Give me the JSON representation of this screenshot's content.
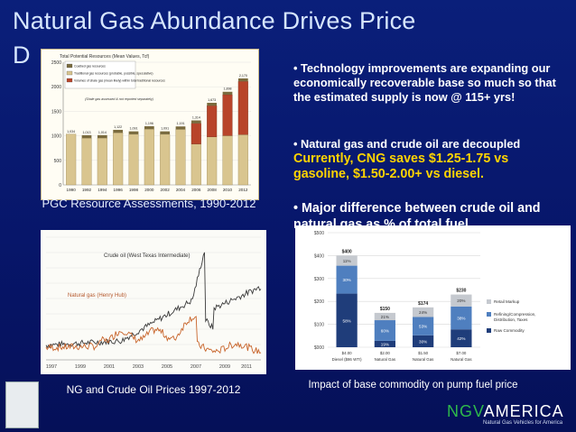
{
  "slide": {
    "title": "Natural Gas Abundance Drives Price",
    "title_fragment": "D"
  },
  "fig1": {
    "header": "Total Potential Resources (Mean Values, Tcf)",
    "legend": [
      "Coalbed gas resources",
      "Traditional gas resources (probable, possible, speculative)",
      "Volumes of shale gas (mean likely) within total traditional resources"
    ],
    "annotation": "(Shale gas assessed & not reported separately)",
    "y_ticks": [
      "0",
      "500",
      "1000",
      "1500",
      "2000",
      "2500"
    ],
    "x_labels": [
      "1990",
      "1992",
      "1994",
      "1996",
      "1998",
      "2000",
      "2002",
      "2004",
      "2006",
      "2008",
      "2010",
      "2012"
    ],
    "bar_labels": [
      "1,034",
      "1,013",
      "1,014",
      "1,122",
      "1,091",
      "1,196",
      "1,091",
      "1,191",
      "1,314",
      "1,673",
      "1,898",
      "2,170"
    ],
    "colors": {
      "base": "#d9c58f",
      "shale": "#b8442a",
      "coal": "#7a6b3e"
    }
  },
  "caption1": "PGC Resource Assessments, 1990-2012",
  "fig2": {
    "crude_label": "Crude oil (West Texas Intermediate)",
    "gas_label": "Natural gas (Henry Hub)",
    "x_ticks": [
      "1997",
      "1999",
      "2001",
      "2003",
      "2005",
      "2007",
      "2009",
      "2011"
    ],
    "colors": {
      "crude": "#3a3a3a",
      "gas": "#c8642a"
    }
  },
  "caption2": "NG and Crude Oil Prices 1997-2012",
  "bullets": {
    "b1": "Technology improvements are expanding our economically recoverable base so much so that the estimated supply is now @ 115+ yrs!",
    "b2": "Natural gas and crude oil are decoupled",
    "b2_highlight": "Currently, CNG saves $1.25-1.75 vs gasoline, $1.50-2.00+ vs diesel.",
    "b3": "Major difference between crude oil and natural gas as % of total fuel"
  },
  "chart_data": {
    "type": "bar",
    "categories": [
      "$4.00 Diesel ($86 WTI)",
      "$2.00 Natural Gas",
      "$1.50 Natural Gas",
      "$7.00 Natural Gas"
    ],
    "y_ticks": [
      "$000",
      "$100",
      "$200",
      "$300",
      "$400",
      "$500"
    ],
    "ylim": [
      0,
      500
    ],
    "totals": [
      "$400",
      "$150",
      "$174",
      "$230"
    ],
    "series": [
      {
        "name": "Raw Commodity",
        "values": [
          234,
          28,
          52,
          78
        ],
        "labels": [
          "58%",
          "19%",
          "30%",
          "42%"
        ]
      },
      {
        "name": "Refining/Compression, Distribution, Taxes",
        "values": [
          122,
          90,
          80,
          100
        ],
        "labels": [
          "30%",
          "60%",
          "53%",
          "38%"
        ]
      },
      {
        "name": "Retail Markup",
        "values": [
          44,
          32,
          42,
          52
        ],
        "labels": [
          "11%",
          "21%",
          "24%",
          "20%"
        ]
      }
    ],
    "colors": [
      "#1f3d7a",
      "#4f7fbf",
      "#c5c9cf"
    ]
  },
  "caption3": "Impact of base commodity on pump fuel price",
  "logo": {
    "part1": "NGV",
    "part2": "AMERICA",
    "tagline": "Natural Gas Vehicles for America"
  }
}
